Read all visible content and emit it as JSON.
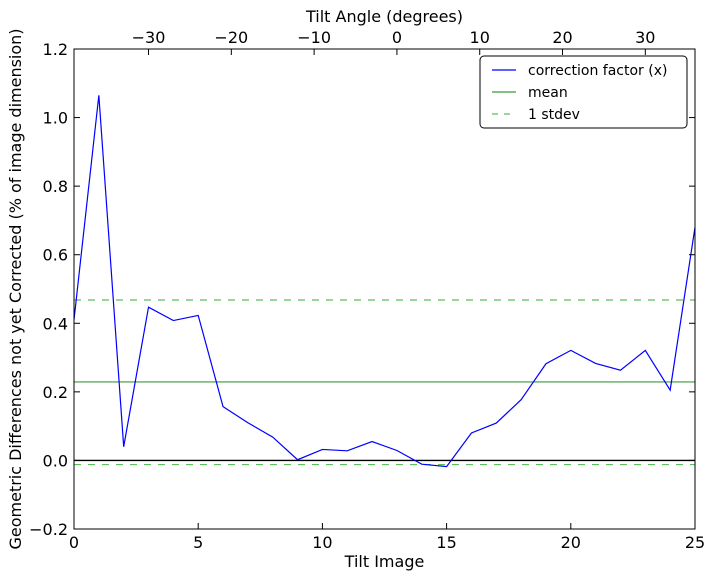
{
  "chart_data": {
    "type": "line",
    "xlabel": "Tilt Image",
    "ylabel": "Geometric Differences not yet Corrected (% of image dimension)",
    "x2label": "Tilt Angle (degrees)",
    "xlim": [
      0,
      25
    ],
    "ylim": [
      -0.2,
      1.2
    ],
    "x2lim": [
      -39,
      36
    ],
    "xticks": [
      0,
      5,
      10,
      15,
      20,
      25
    ],
    "xtick_labels": [
      "0",
      "5",
      "10",
      "15",
      "20",
      "25"
    ],
    "yticks": [
      -0.2,
      0.0,
      0.2,
      0.4,
      0.6,
      0.8,
      1.0,
      1.2
    ],
    "ytick_labels": [
      "−0.2",
      "0.0",
      "0.2",
      "0.4",
      "0.6",
      "0.8",
      "1.0",
      "1.2"
    ],
    "x2ticks": [
      -30,
      -20,
      -10,
      0,
      10,
      20,
      30
    ],
    "x2tick_labels": [
      "−30",
      "−20",
      "−10",
      "0",
      "10",
      "20",
      "30"
    ],
    "grid": false,
    "legend_position": "top-right",
    "series": [
      {
        "name": "correction factor (x)",
        "color": "#0000ff",
        "style": "solid",
        "x": [
          0,
          1,
          2,
          3,
          4,
          5,
          6,
          7,
          8,
          9,
          10,
          11,
          12,
          13,
          14,
          15,
          16,
          17,
          18,
          19,
          20,
          21,
          22,
          23,
          24,
          25
        ],
        "y": [
          0.41,
          1.065,
          0.04,
          0.447,
          0.408,
          0.423,
          0.157,
          0.11,
          0.068,
          0.002,
          0.032,
          0.028,
          0.055,
          0.029,
          -0.011,
          -0.018,
          0.08,
          0.109,
          0.177,
          0.282,
          0.321,
          0.283,
          0.263,
          0.321,
          0.205,
          0.68
        ]
      },
      {
        "name": "mean",
        "color": "#3a9a3a",
        "style": "solid",
        "y_constant": 0.229
      },
      {
        "name": "1 stdev",
        "color": "#5cbf5c",
        "style": "dashed",
        "y_constant": [
          0.468,
          -0.012
        ]
      }
    ],
    "reference_line": {
      "y": 0.0,
      "color": "#000000"
    }
  }
}
